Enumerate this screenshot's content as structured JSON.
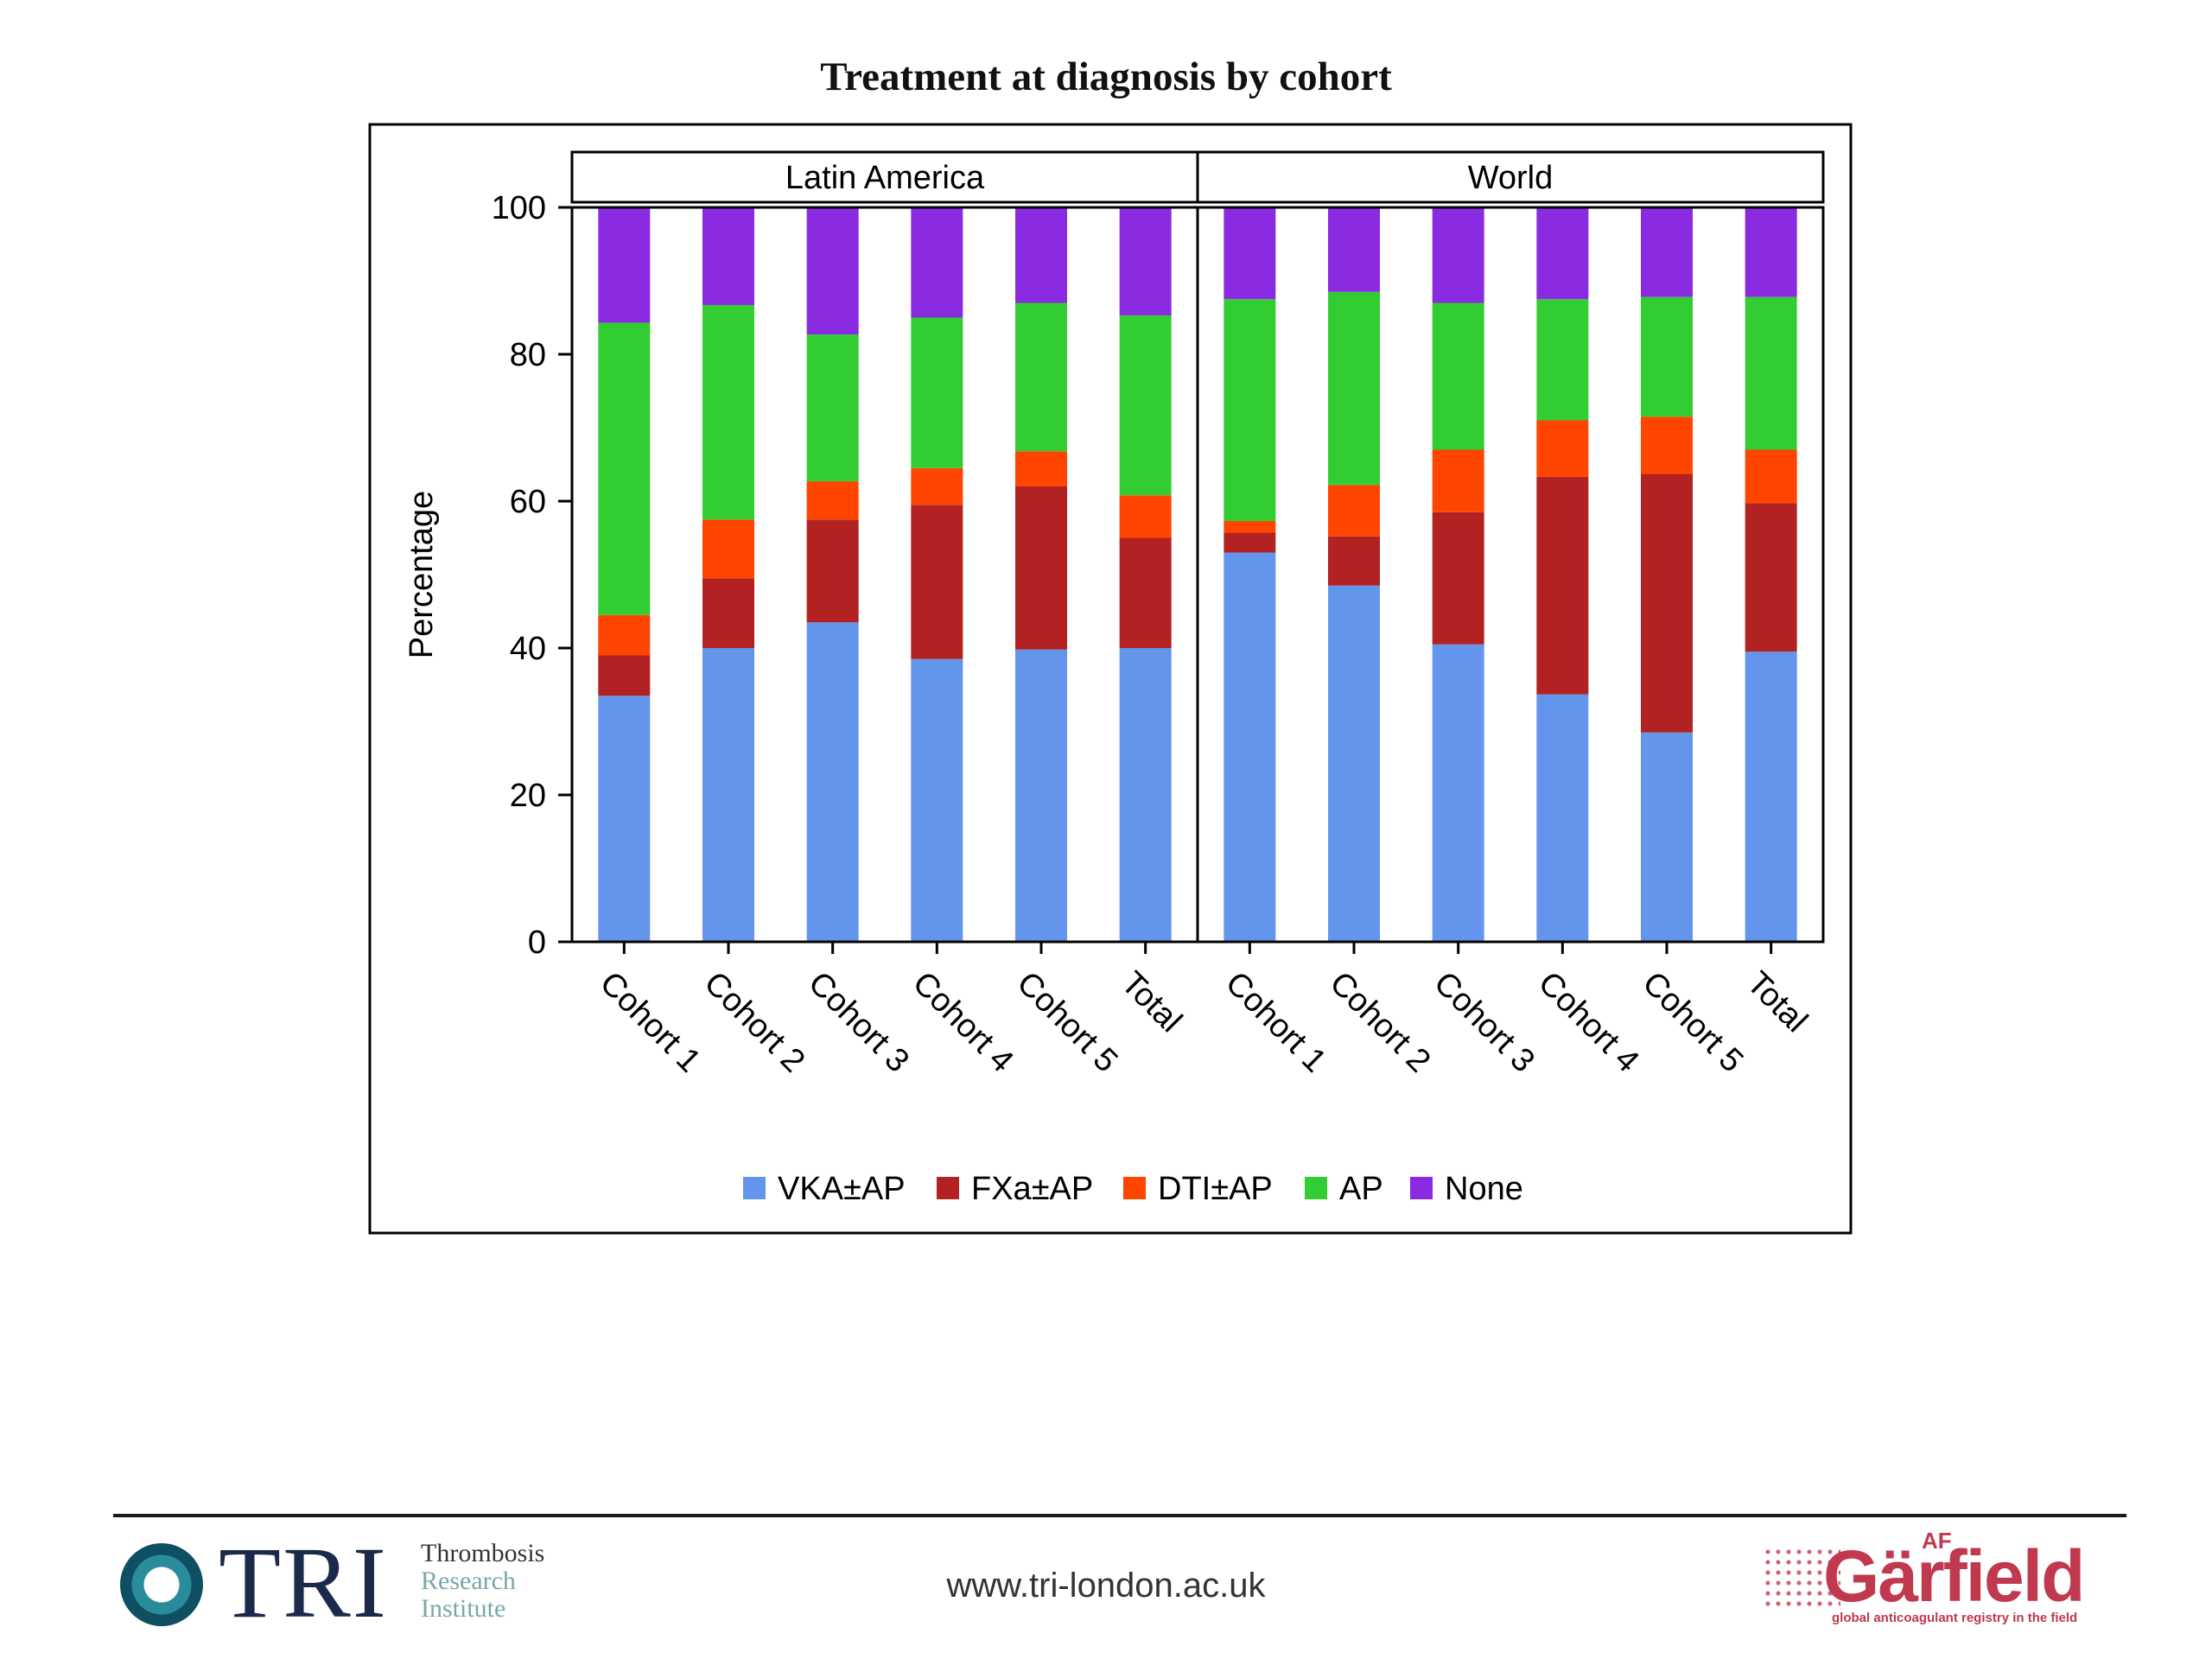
{
  "slide": {
    "title": "Treatment at diagnosis by cohort",
    "footer_url": "www.tri-london.ac.uk",
    "tri_logo": {
      "wordmark": "TRI",
      "name_lines": [
        "Thrombosis",
        "Research",
        "Institute"
      ]
    },
    "garfield_logo": {
      "superscript": "AF",
      "wordmark": "Gärfield",
      "tagline": "global anticoagulant registry in the field"
    }
  },
  "chart_data": {
    "type": "bar",
    "stacked": true,
    "ylabel": "Percentage",
    "ylim": [
      0,
      100
    ],
    "yticks": [
      0,
      20,
      40,
      60,
      80,
      100
    ],
    "legend_position": "bottom",
    "categories": [
      "Cohort 1",
      "Cohort 2",
      "Cohort 3",
      "Cohort 4",
      "Cohort 5",
      "Total"
    ],
    "series_names": [
      "VKA±AP",
      "FXa±AP",
      "DTI±AP",
      "AP",
      "None"
    ],
    "series_colors": [
      "#6495ED",
      "#B22222",
      "#FF4500",
      "#32CD32",
      "#8A2BE2"
    ],
    "panels": [
      {
        "title": "Latin America",
        "series": [
          {
            "name": "VKA±AP",
            "values": [
              33.5,
              40.0,
              43.5,
              38.5,
              39.8,
              40.0
            ]
          },
          {
            "name": "FXa±AP",
            "values": [
              5.5,
              9.5,
              14.0,
              21.0,
              22.2,
              15.0
            ]
          },
          {
            "name": "DTI±AP",
            "values": [
              5.5,
              8.0,
              5.2,
              5.0,
              4.8,
              5.8
            ]
          },
          {
            "name": "AP",
            "values": [
              39.8,
              29.2,
              20.0,
              20.5,
              20.2,
              24.5
            ]
          },
          {
            "name": "None",
            "values": [
              15.7,
              13.3,
              17.3,
              15.0,
              13.0,
              14.7
            ]
          }
        ]
      },
      {
        "title": "World",
        "series": [
          {
            "name": "VKA±AP",
            "values": [
              53.0,
              48.5,
              40.5,
              33.7,
              28.5,
              39.5
            ]
          },
          {
            "name": "FXa±AP",
            "values": [
              2.7,
              6.7,
              18.0,
              29.6,
              35.2,
              20.2
            ]
          },
          {
            "name": "DTI±AP",
            "values": [
              1.6,
              7.0,
              8.5,
              7.7,
              7.8,
              7.3
            ]
          },
          {
            "name": "AP",
            "values": [
              30.2,
              26.3,
              20.0,
              16.5,
              16.3,
              20.8
            ]
          },
          {
            "name": "None",
            "values": [
              12.5,
              11.5,
              13.0,
              12.5,
              12.2,
              12.2
            ]
          }
        ]
      }
    ]
  }
}
